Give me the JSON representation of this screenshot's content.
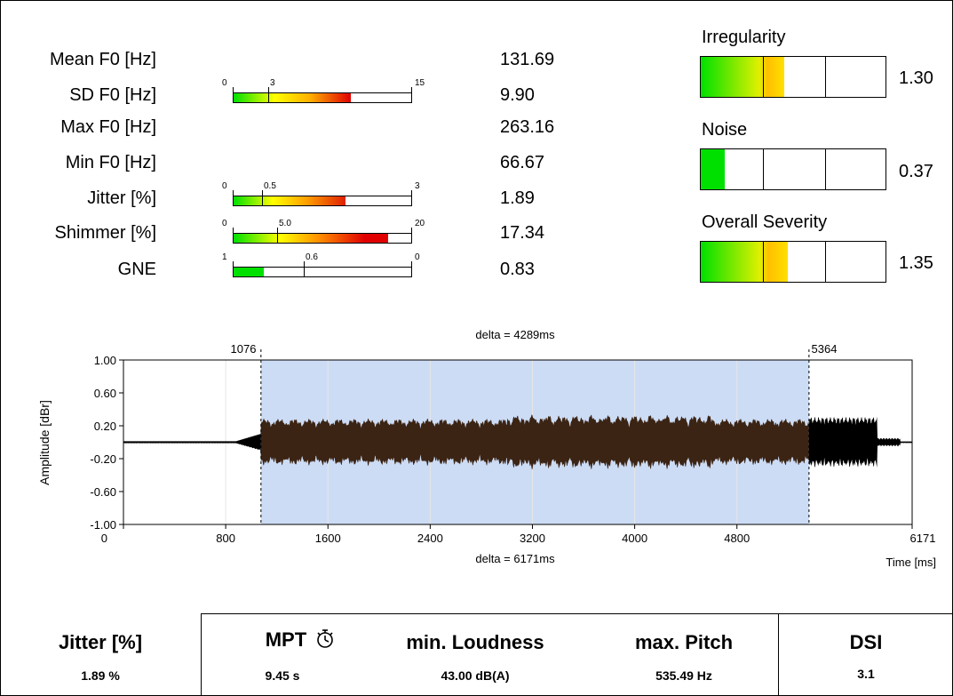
{
  "parameters": [
    {
      "label": "Mean F0 [Hz]",
      "value": "131.69"
    },
    {
      "label": "SD F0 [Hz]",
      "value": "9.90"
    },
    {
      "label": "Max F0 [Hz]",
      "value": "263.16"
    },
    {
      "label": "Min F0 [Hz]",
      "value": "66.67"
    },
    {
      "label": "Jitter [%]",
      "value": "1.89"
    },
    {
      "label": "Shimmer [%]",
      "value": "17.34"
    },
    {
      "label": "GNE",
      "value": "0.83"
    }
  ],
  "gauges": {
    "sd_f0": {
      "min": "0",
      "threshold": "3",
      "max": "15",
      "fill_fraction": 0.66,
      "threshold_fraction": 0.2
    },
    "jitter": {
      "min": "0",
      "threshold": "0.5",
      "max": "3",
      "fill_fraction": 0.63,
      "threshold_fraction": 0.167
    },
    "shimmer": {
      "min": "0",
      "threshold": "5.0",
      "max": "20",
      "fill_fraction": 0.87,
      "threshold_fraction": 0.25
    },
    "gne": {
      "min": "1",
      "threshold": "0.6",
      "max": "0",
      "fill_fraction": 0.17,
      "threshold_fraction": 0.4
    }
  },
  "severity": [
    {
      "label": "Irregularity",
      "value": "1.30",
      "fill_fraction": 0.45
    },
    {
      "label": "Noise",
      "value": "0.37",
      "fill_fraction": 0.13
    },
    {
      "label": "Overall Severity",
      "value": "1.35",
      "fill_fraction": 0.47
    }
  ],
  "colors": {
    "green": "#00e000",
    "yellow": "#ffff00",
    "orange": "#ff8000",
    "red": "#e00000",
    "selection": "#cddcf5",
    "waveform_selected": "#3b2414",
    "waveform_unselected": "#000000"
  },
  "chart_data": {
    "type": "line",
    "ylabel": "Amplitude [dBr]",
    "xlabel": "Time [ms]",
    "x_ticks": [
      "0",
      "800",
      "1600",
      "2400",
      "3200",
      "4000",
      "4800",
      "6171"
    ],
    "y_ticks": [
      "1.00",
      "0.60",
      "0.20",
      "-0.20",
      "-0.60",
      "-1.00"
    ],
    "xlim": [
      0,
      6171
    ],
    "ylim": [
      -1.0,
      1.0
    ],
    "selection_start": 1076,
    "selection_end": 5364,
    "selection_start_label": "1076",
    "selection_end_label": "5364",
    "delta_top": "delta = 4289ms",
    "delta_bottom": "delta = 6171ms",
    "grid": "vertical"
  },
  "summary": {
    "jitter": {
      "label": "Jitter [%]",
      "value": "1.89 %"
    },
    "mpt": {
      "label": "MPT",
      "value": "9.45 s",
      "icon": "stopwatch-icon"
    },
    "min_loudness": {
      "label": "min. Loudness",
      "value": "43.00 dB(A)"
    },
    "max_pitch": {
      "label": "max. Pitch",
      "value": "535.49 Hz"
    },
    "dsi": {
      "label": "DSI",
      "value": "3.1"
    }
  }
}
